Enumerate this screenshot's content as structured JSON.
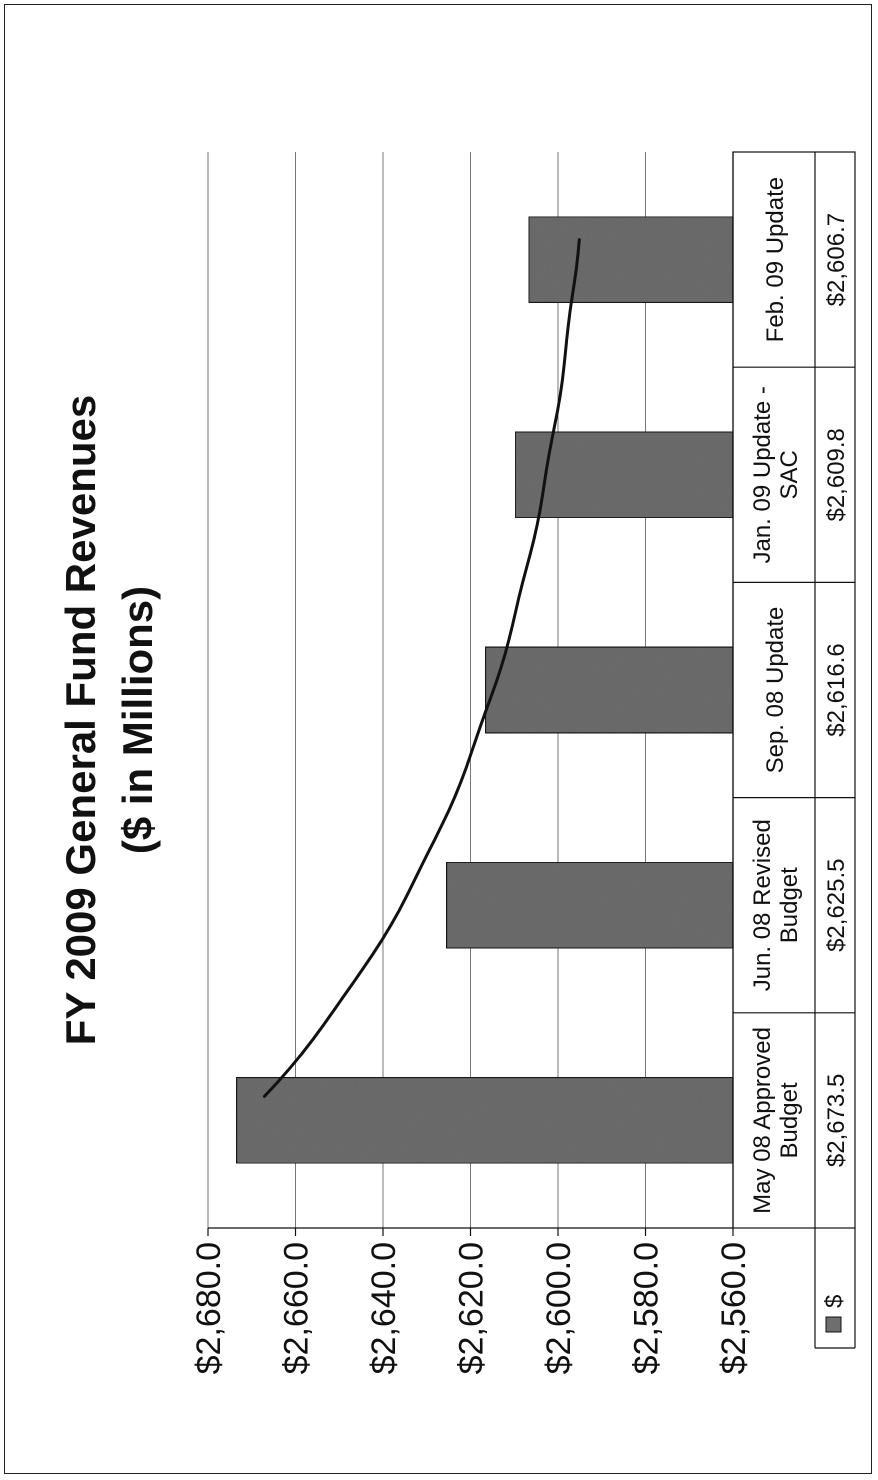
{
  "chart_data": {
    "type": "bar",
    "title": "FY 2009 General Fund Revenues",
    "subtitle": "($ in Millions)",
    "categories": [
      [
        "May 08 Approved",
        "Budget"
      ],
      [
        "Jun. 08 Revised",
        "Budget"
      ],
      [
        "Sep. 08 Update"
      ],
      [
        "Jan. 09 Update -",
        "SAC"
      ],
      [
        "Feb. 09 Update"
      ]
    ],
    "series": [
      {
        "name": "$",
        "values": [
          2673.5,
          2625.5,
          2616.6,
          2609.8,
          2606.7
        ],
        "value_labels": [
          "$2,673.5",
          "$2,625.5",
          "$2,616.6",
          "$2,609.8",
          "$2,606.7"
        ]
      }
    ],
    "ylim": [
      2560,
      2680
    ],
    "y_ticks": [
      2560,
      2580,
      2600,
      2620,
      2640,
      2660,
      2680
    ],
    "y_tick_labels": [
      "$2,560.0",
      "$2,580.0",
      "$2,600.0",
      "$2,620.0",
      "$2,640.0",
      "$2,660.0",
      "$2,680.0"
    ],
    "grid": true,
    "legend": "data-table",
    "orientation": "rotated-90-ccw",
    "trend_line": "hand-drawn curve",
    "colors": {
      "bar": "#6e6e6e",
      "bar_edge": "#1a1a1a",
      "grid": "#777777",
      "trend": "#111111"
    }
  }
}
